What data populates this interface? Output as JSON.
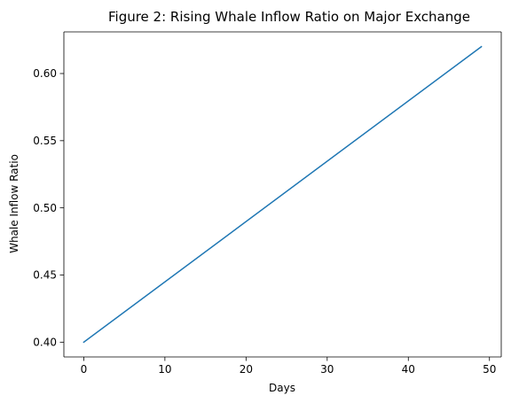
{
  "chart_data": {
    "type": "line",
    "title": "Figure 2: Rising Whale Inflow Ratio on Major Exchange",
    "xlabel": "Days",
    "ylabel": "Whale Inflow Ratio",
    "xlim": [
      -2.45,
      51.45
    ],
    "ylim": [
      0.389,
      0.631
    ],
    "x_ticks": [
      0,
      10,
      20,
      30,
      40,
      50
    ],
    "y_ticks": [
      0.4,
      0.45,
      0.5,
      0.55,
      0.6
    ],
    "y_tick_labels": [
      "0.40",
      "0.45",
      "0.50",
      "0.55",
      "0.60"
    ],
    "grid": false,
    "legend": "none",
    "series": [
      {
        "color": "#1f77b4",
        "x": [
          0,
          49
        ],
        "y": [
          0.4,
          0.62
        ]
      }
    ]
  }
}
